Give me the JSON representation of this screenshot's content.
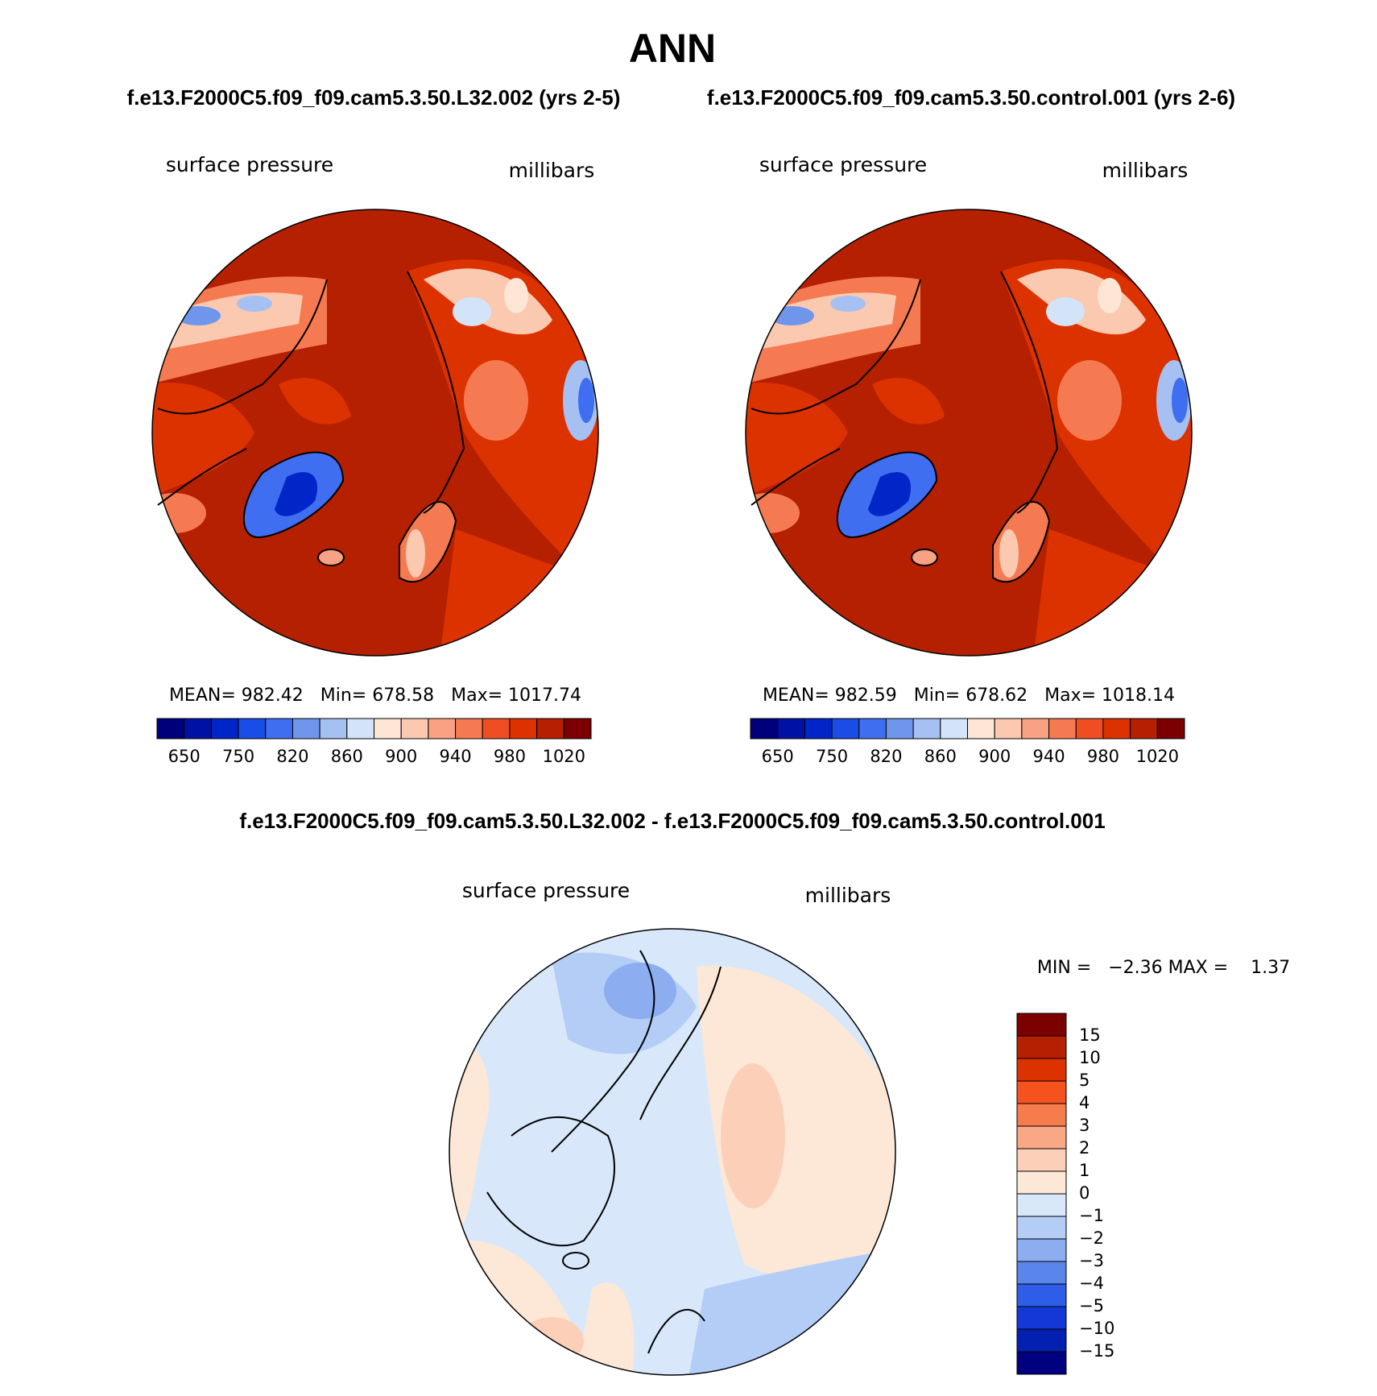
{
  "title": "ANN",
  "panels": [
    {
      "subtitle": "f.e13.F2000C5.f09_f09.cam5.3.50.L32.002 (yrs 2-5)",
      "variable": "surface pressure",
      "units": "millibars",
      "stats": "MEAN= 982.42   Min= 678.58   Max= 1017.74"
    },
    {
      "subtitle": "f.e13.F2000C5.f09_f09.cam5.3.50.control.001 (yrs 2-6)",
      "variable": "surface pressure",
      "units": "millibars",
      "stats": "MEAN= 982.59   Min= 678.62   Max= 1018.14"
    }
  ],
  "colorbar": {
    "colors": [
      "#00007a",
      "#0012a3",
      "#0026c8",
      "#1a4ce6",
      "#3f6ef0",
      "#7096ec",
      "#a6c0f2",
      "#d3e4f8",
      "#fde6d6",
      "#fbc9b0",
      "#f8a283",
      "#f57a52",
      "#ef4e22",
      "#dc3200",
      "#b52000",
      "#7d0000"
    ],
    "labels": [
      650,
      750,
      820,
      860,
      900,
      940,
      980,
      1020
    ]
  },
  "difference": {
    "subtitle": "f.e13.F2000C5.f09_f09.cam5.3.50.L32.002 - f.e13.F2000C5.f09_f09.cam5.3.50.control.001",
    "variable": "surface pressure",
    "units": "millibars",
    "stats": "MIN =   −2.36 MAX =    1.37",
    "colorbar": {
      "colors": [
        "#7d0000",
        "#b52000",
        "#dc3200",
        "#f5521e",
        "#f77c4c",
        "#f9a886",
        "#fcd0b8",
        "#fde8d8",
        "#d8e8fa",
        "#b4cdf6",
        "#8cadf0",
        "#5a86ec",
        "#2e5ee8",
        "#1438d6",
        "#0420b0",
        "#000080"
      ],
      "labels": [
        "15",
        "10",
        "5",
        "4",
        "3",
        "2",
        "1",
        "0",
        "−1",
        "−2",
        "−3",
        "−4",
        "−5",
        "−10",
        "−15"
      ]
    }
  }
}
